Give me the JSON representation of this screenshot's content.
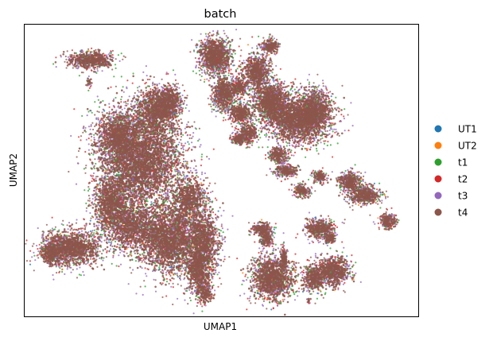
{
  "chart_data": {
    "type": "scatter",
    "title": "batch",
    "xlabel": "UMAP1",
    "ylabel": "UMAP2",
    "x_ticks": false,
    "y_ticks": false,
    "grid": false,
    "legend_placement": "right",
    "series": [
      {
        "name": "UT1",
        "color": "#1f77b4"
      },
      {
        "name": "UT2",
        "color": "#ff7f0e"
      },
      {
        "name": "t1",
        "color": "#2ca02c"
      },
      {
        "name": "t2",
        "color": "#d62728"
      },
      {
        "name": "t3",
        "color": "#9467bd"
      },
      {
        "name": "t4",
        "color": "#8c564b"
      }
    ]
  }
}
